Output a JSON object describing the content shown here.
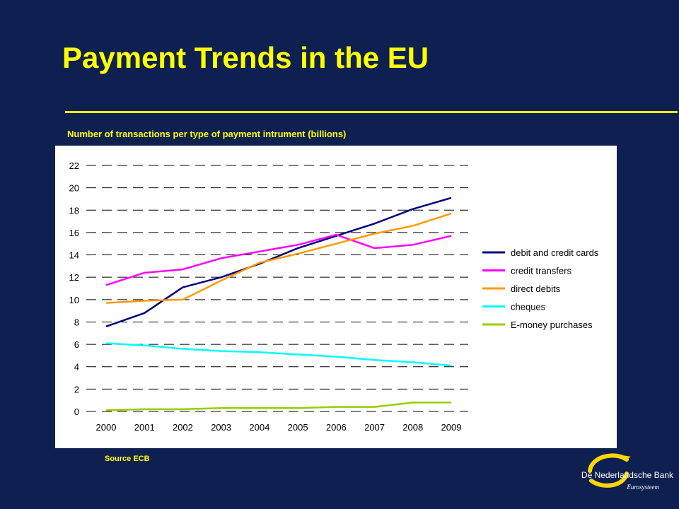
{
  "slide": {
    "title": "Payment Trends in the EU",
    "subtitle": "Number of transactions per type of payment intrument (billions)",
    "source": "Source ECB",
    "brand": "De Nederlandsche Bank",
    "brand_sub": "Eurosysteem",
    "logo_icon": "dnb-swirl-logo-icon",
    "colors": {
      "background": "#0e2050",
      "title": "#ffff00",
      "logo": "#ffd700"
    }
  },
  "chart_data": {
    "type": "line",
    "title": "Number of transactions per type of payment intrument (billions)",
    "xlabel": "",
    "ylabel": "",
    "categories": [
      "2000",
      "2001",
      "2002",
      "2003",
      "2004",
      "2005",
      "2006",
      "2007",
      "2008",
      "2009"
    ],
    "ylim": [
      0,
      22
    ],
    "yticks": [
      "0",
      "2",
      "4",
      "6",
      "8",
      "10",
      "12",
      "14",
      "16",
      "18",
      "20",
      "22"
    ],
    "grid": "dashed horizontal",
    "legend_position": "right",
    "series": [
      {
        "name": "debit and credit cards",
        "color": "#000080",
        "values": [
          7.6,
          8.8,
          11.1,
          12.0,
          13.2,
          14.6,
          15.7,
          16.8,
          18.1,
          19.1
        ]
      },
      {
        "name": "credit transfers",
        "color": "#ff00ff",
        "values": [
          11.3,
          12.4,
          12.7,
          13.7,
          14.3,
          14.9,
          15.8,
          14.6,
          14.9,
          15.7
        ]
      },
      {
        "name": "direct debits",
        "color": "#ff9900",
        "values": [
          9.7,
          9.9,
          10.0,
          11.7,
          13.3,
          14.1,
          15.0,
          15.9,
          16.6,
          17.7
        ]
      },
      {
        "name": "cheques",
        "color": "#00ffff",
        "values": [
          6.1,
          5.9,
          5.6,
          5.4,
          5.3,
          5.1,
          4.9,
          4.6,
          4.4,
          4.1
        ]
      },
      {
        "name": "E-money purchases",
        "color": "#99cc00",
        "values": [
          0.1,
          0.2,
          0.2,
          0.3,
          0.3,
          0.3,
          0.4,
          0.4,
          0.8,
          0.8
        ]
      }
    ]
  }
}
